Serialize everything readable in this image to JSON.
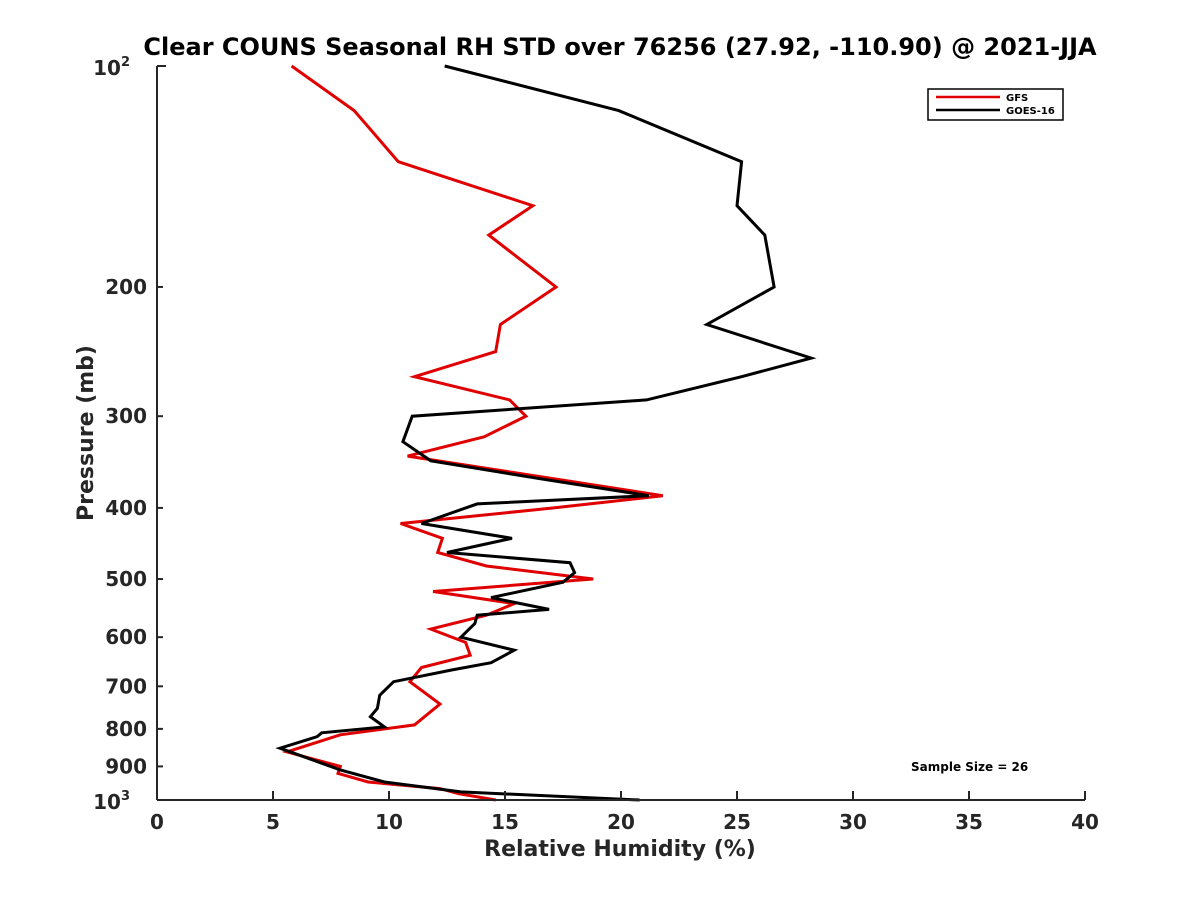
{
  "chart_data": {
    "type": "line",
    "title": "Clear COUNS Seasonal RH STD over 76256 (27.92, -110.90) @ 2021-JJA",
    "xlabel": "Relative Humidity (%)",
    "ylabel": "Pressure (mb)",
    "xlim": [
      0,
      40
    ],
    "ylim": [
      100,
      1000
    ],
    "yscale": "log",
    "y_reversed": true,
    "x_ticks": [
      0,
      5,
      10,
      15,
      20,
      25,
      30,
      35,
      40
    ],
    "x_tick_labels": [
      "0",
      "5",
      "10",
      "15",
      "20",
      "25",
      "30",
      "35",
      "40"
    ],
    "y_ticks": [
      200,
      300,
      400,
      500,
      600,
      700,
      800,
      900
    ],
    "y_tick_labels": [
      "200",
      "300",
      "400",
      "500",
      "600",
      "700",
      "800",
      "900"
    ],
    "y_top_label": {
      "base": "10",
      "exp": "2"
    },
    "y_bottom_label": {
      "base": "10",
      "exp": "3"
    },
    "legend_position": "top-right",
    "annotation": "Sample Size = 26",
    "series": [
      {
        "name": "GFS",
        "color": "#e00000",
        "x": [
          5.8,
          8.5,
          10.4,
          16.2,
          14.3,
          17.2,
          14.8,
          14.6,
          11.1,
          15.2,
          15.9,
          14.1,
          10.8,
          17.1,
          21.8,
          17.1,
          10.5,
          12.3,
          12.1,
          14.2,
          18.8,
          11.9,
          15.4,
          14.2,
          11.8,
          13.3,
          13.5,
          11.4,
          10.9,
          12.2,
          11.1,
          7.9,
          5.6,
          7.9,
          7.8,
          9.1,
          12.2,
          13.0,
          14.6
        ],
        "y": [
          100,
          115,
          135,
          155,
          170,
          200,
          225,
          245,
          265,
          285,
          300,
          320,
          340,
          365,
          385,
          400,
          420,
          440,
          460,
          480,
          500,
          520,
          540,
          560,
          585,
          610,
          635,
          660,
          690,
          740,
          790,
          815,
          860,
          900,
          920,
          945,
          965,
          980,
          1000
        ]
      },
      {
        "name": "GOES-16",
        "color": "#000000",
        "x": [
          12.4,
          19.9,
          25.2,
          25.0,
          26.2,
          26.6,
          23.7,
          28.2,
          25.2,
          21.1,
          11.0,
          10.6,
          11.8,
          16.5,
          21.2,
          13.8,
          11.4,
          15.3,
          12.5,
          17.8,
          18.0,
          17.5,
          14.4,
          16.9,
          13.8,
          13.7,
          13.1,
          15.4,
          14.4,
          12.7,
          10.2,
          9.6,
          9.5,
          9.2,
          9.8,
          7.1,
          6.9,
          5.3,
          7.9,
          9.8,
          13.1,
          20.8
        ],
        "y": [
          100,
          115,
          135,
          155,
          170,
          200,
          225,
          250,
          265,
          285,
          300,
          325,
          345,
          365,
          385,
          395,
          420,
          440,
          460,
          475,
          490,
          505,
          530,
          550,
          560,
          575,
          600,
          625,
          650,
          665,
          690,
          720,
          750,
          770,
          795,
          810,
          820,
          850,
          910,
          945,
          975,
          1000
        ]
      }
    ]
  }
}
